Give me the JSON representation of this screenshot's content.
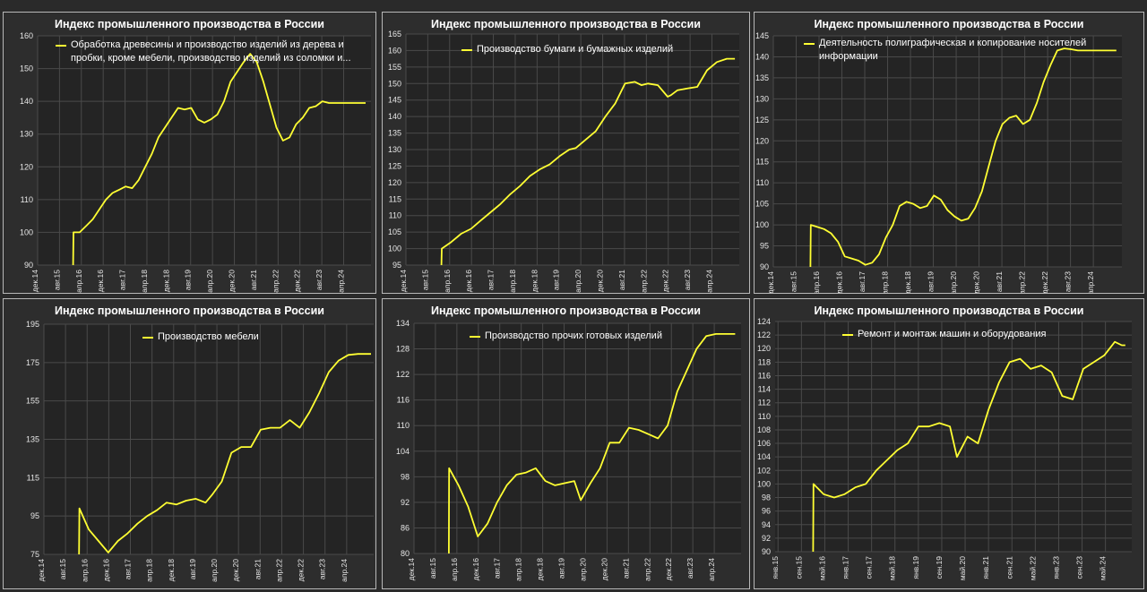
{
  "chart_data": [
    {
      "type": "line",
      "title": "Индекс промышленного производства в России",
      "legend": [
        "Обработка древесины и производство изделий из дерева и",
        "пробки, кроме мебели, производство изделий из соломки и..."
      ],
      "series_name": "Обработка древесины и производство изделий из дерева и пробки, кроме мебели, производство изделий из соломки и...",
      "color": "#ffff33",
      "ylim": [
        90,
        160
      ],
      "yticks": [
        90,
        100,
        110,
        120,
        130,
        140,
        150,
        160
      ],
      "xlim": [
        2014.917,
        2025.083
      ],
      "xticks": [
        {
          "label": "дек.14",
          "x": 2014.917
        },
        {
          "label": "авг.15",
          "x": 2015.583
        },
        {
          "label": "апр.16",
          "x": 2016.25
        },
        {
          "label": "дек.16",
          "x": 2016.917
        },
        {
          "label": "авг.17",
          "x": 2017.583
        },
        {
          "label": "апр.18",
          "x": 2018.25
        },
        {
          "label": "дек.18",
          "x": 2018.917
        },
        {
          "label": "авг.19",
          "x": 2019.583
        },
        {
          "label": "апр.20",
          "x": 2020.25
        },
        {
          "label": "дек.20",
          "x": 2020.917
        },
        {
          "label": "авг.21",
          "x": 2021.583
        },
        {
          "label": "апр.22",
          "x": 2022.25
        },
        {
          "label": "дек.22",
          "x": 2022.917
        },
        {
          "label": "авг.23",
          "x": 2023.583
        },
        {
          "label": "апр.24",
          "x": 2024.25
        }
      ],
      "x": [
        2016.0,
        2016.01,
        2016.2,
        2016.4,
        2016.6,
        2016.8,
        2017.0,
        2017.2,
        2017.4,
        2017.6,
        2017.8,
        2018.0,
        2018.2,
        2018.4,
        2018.6,
        2018.8,
        2019.0,
        2019.2,
        2019.4,
        2019.6,
        2019.8,
        2020.0,
        2020.2,
        2020.4,
        2020.6,
        2020.8,
        2021.0,
        2021.2,
        2021.4,
        2021.6,
        2021.8,
        2022.0,
        2022.2,
        2022.4,
        2022.6,
        2022.8,
        2023.0,
        2023.2,
        2023.4,
        2023.6,
        2023.8,
        2024.0,
        2024.2,
        2024.4,
        2024.6,
        2024.8,
        2024.92
      ],
      "values": [
        90,
        100,
        100,
        102,
        104,
        107,
        110,
        112,
        113,
        114,
        113.5,
        116,
        120,
        124,
        129,
        132,
        135,
        138,
        137.5,
        138,
        134.5,
        133.5,
        134.5,
        136,
        140,
        146,
        149,
        152,
        154.5,
        152,
        146,
        139,
        132,
        128,
        129,
        133,
        135,
        138,
        138.5,
        140,
        139.5,
        139.5,
        139.5,
        139.5,
        139.5,
        139.5,
        139.5
      ]
    },
    {
      "type": "line",
      "title": "Индекс промышленного производства в России",
      "legend": [
        "Производство бумаги и бумажных изделий"
      ],
      "series_name": "Производство бумаги и бумажных изделий",
      "color": "#ffff33",
      "ylim": [
        95,
        165
      ],
      "yticks": [
        95,
        100,
        105,
        110,
        115,
        120,
        125,
        130,
        135,
        140,
        145,
        150,
        155,
        160,
        165
      ],
      "xlim": [
        2014.917,
        2025.083
      ],
      "xticks": [
        {
          "label": "дек.14",
          "x": 2014.917
        },
        {
          "label": "авг.15",
          "x": 2015.583
        },
        {
          "label": "апр.16",
          "x": 2016.25
        },
        {
          "label": "дек.16",
          "x": 2016.917
        },
        {
          "label": "авг.17",
          "x": 2017.583
        },
        {
          "label": "апр.18",
          "x": 2018.25
        },
        {
          "label": "дек.18",
          "x": 2018.917
        },
        {
          "label": "авг.19",
          "x": 2019.583
        },
        {
          "label": "апр.20",
          "x": 2020.25
        },
        {
          "label": "дек.20",
          "x": 2020.917
        },
        {
          "label": "авг.21",
          "x": 2021.583
        },
        {
          "label": "апр.22",
          "x": 2022.25
        },
        {
          "label": "дек.22",
          "x": 2022.917
        },
        {
          "label": "авг.23",
          "x": 2023.583
        },
        {
          "label": "апр.24",
          "x": 2024.25
        }
      ],
      "x": [
        2016.0,
        2016.01,
        2016.3,
        2016.6,
        2016.9,
        2017.2,
        2017.5,
        2017.8,
        2018.1,
        2018.4,
        2018.7,
        2019.0,
        2019.3,
        2019.6,
        2019.9,
        2020.1,
        2020.4,
        2020.7,
        2021.0,
        2021.3,
        2021.6,
        2021.9,
        2022.1,
        2022.3,
        2022.6,
        2022.9,
        2023.0,
        2023.2,
        2023.5,
        2023.8,
        2024.1,
        2024.4,
        2024.7,
        2024.95
      ],
      "values": [
        95,
        100,
        102,
        104.5,
        106,
        108.5,
        111,
        113.5,
        116.5,
        119,
        122,
        124,
        125.5,
        128,
        130,
        130.5,
        133,
        135.5,
        140,
        144,
        150,
        150.5,
        149.5,
        150,
        149.5,
        146,
        146.5,
        148,
        148.5,
        149,
        154,
        156.5,
        157.5,
        157.5
      ]
    },
    {
      "type": "line",
      "title": "Индекс промышленного производства в России",
      "legend": [
        "Деятельность полиграфическая и копирование носителей",
        "информации"
      ],
      "series_name": "Деятельность полиграфическая и копирование носителей информации",
      "color": "#ffff33",
      "ylim": [
        90,
        145
      ],
      "yticks": [
        90,
        95,
        100,
        105,
        110,
        115,
        120,
        125,
        130,
        135,
        140,
        145
      ],
      "xlim": [
        2014.917,
        2025.083
      ],
      "xticks": [
        {
          "label": "дек.14",
          "x": 2014.917
        },
        {
          "label": "авг.15",
          "x": 2015.583
        },
        {
          "label": "апр.16",
          "x": 2016.25
        },
        {
          "label": "дек.16",
          "x": 2016.917
        },
        {
          "label": "авг.17",
          "x": 2017.583
        },
        {
          "label": "апр.18",
          "x": 2018.25
        },
        {
          "label": "дек.18",
          "x": 2018.917
        },
        {
          "label": "авг.19",
          "x": 2019.583
        },
        {
          "label": "апр.20",
          "x": 2020.25
        },
        {
          "label": "дек.20",
          "x": 2020.917
        },
        {
          "label": "авг.21",
          "x": 2021.583
        },
        {
          "label": "апр.22",
          "x": 2022.25
        },
        {
          "label": "дек.22",
          "x": 2022.917
        },
        {
          "label": "авг.23",
          "x": 2023.583
        },
        {
          "label": "апр.24",
          "x": 2024.25
        }
      ],
      "x": [
        2016.0,
        2016.01,
        2016.2,
        2016.4,
        2016.6,
        2016.8,
        2017.0,
        2017.2,
        2017.4,
        2017.6,
        2017.8,
        2018.0,
        2018.2,
        2018.4,
        2018.6,
        2018.8,
        2019.0,
        2019.2,
        2019.4,
        2019.6,
        2019.8,
        2020.0,
        2020.2,
        2020.4,
        2020.6,
        2020.8,
        2021.0,
        2021.2,
        2021.4,
        2021.6,
        2021.8,
        2022.0,
        2022.2,
        2022.4,
        2022.6,
        2022.8,
        2023.0,
        2023.2,
        2023.4,
        2023.6,
        2023.8,
        2024.0,
        2024.2,
        2024.4,
        2024.6,
        2024.8,
        2024.92
      ],
      "values": [
        90,
        100,
        99.5,
        99,
        98,
        96,
        92.5,
        92,
        91.5,
        90.5,
        91,
        93,
        97,
        100,
        104.5,
        105.5,
        105,
        104,
        104.5,
        107,
        106,
        103.5,
        102,
        101,
        101.5,
        104,
        108,
        114,
        120,
        124,
        125.5,
        126,
        124,
        125,
        129,
        134,
        138,
        141.5,
        142,
        141.8,
        141.5,
        141.5,
        141.5,
        141.5,
        141.5,
        141.5,
        141.5
      ]
    },
    {
      "type": "line",
      "title": "Индекс промышленного производства в России",
      "legend": [
        "Производство мебели"
      ],
      "series_name": "Производство мебели",
      "color": "#ffff33",
      "ylim": [
        75,
        195
      ],
      "yticks": [
        75,
        95,
        115,
        135,
        155,
        175,
        195
      ],
      "xlim": [
        2014.917,
        2025.083
      ],
      "xticks": [
        {
          "label": "дек.14",
          "x": 2014.917
        },
        {
          "label": "авг.15",
          "x": 2015.583
        },
        {
          "label": "апр.16",
          "x": 2016.25
        },
        {
          "label": "дек.16",
          "x": 2016.917
        },
        {
          "label": "авг.17",
          "x": 2017.583
        },
        {
          "label": "апр.18",
          "x": 2018.25
        },
        {
          "label": "дек.18",
          "x": 2018.917
        },
        {
          "label": "авг.19",
          "x": 2019.583
        },
        {
          "label": "апр.20",
          "x": 2020.25
        },
        {
          "label": "дек.20",
          "x": 2020.917
        },
        {
          "label": "авг.21",
          "x": 2021.583
        },
        {
          "label": "апр.22",
          "x": 2022.25
        },
        {
          "label": "дек.22",
          "x": 2022.917
        },
        {
          "label": "авг.23",
          "x": 2023.583
        },
        {
          "label": "апр.24",
          "x": 2024.25
        }
      ],
      "x": [
        2016.0,
        2016.01,
        2016.3,
        2016.6,
        2016.9,
        2017.2,
        2017.5,
        2017.8,
        2018.1,
        2018.4,
        2018.7,
        2019.0,
        2019.3,
        2019.6,
        2019.9,
        2020.1,
        2020.4,
        2020.7,
        2021.0,
        2021.3,
        2021.6,
        2021.9,
        2022.2,
        2022.5,
        2022.8,
        2023.1,
        2023.4,
        2023.7,
        2024.0,
        2024.3,
        2024.6,
        2024.9,
        2025.0
      ],
      "values": [
        75,
        99,
        88,
        82,
        76,
        82,
        86,
        91,
        95,
        98,
        102,
        101,
        103,
        104,
        102,
        106,
        113,
        128,
        131,
        131,
        140,
        141,
        141,
        145,
        141,
        149,
        159,
        170,
        176,
        179,
        179.5,
        179.5,
        179.5
      ]
    },
    {
      "type": "line",
      "title": "Индекс промышленного производства в России",
      "legend": [
        "Производство прочих готовых изделий"
      ],
      "series_name": "Производство прочих готовых изделий",
      "color": "#ffff33",
      "ylim": [
        80,
        134
      ],
      "yticks": [
        80,
        86,
        92,
        98,
        104,
        110,
        116,
        122,
        128,
        134
      ],
      "xlim": [
        2014.917,
        2025.083
      ],
      "xticks": [
        {
          "label": "дек.14",
          "x": 2014.917
        },
        {
          "label": "авг.15",
          "x": 2015.583
        },
        {
          "label": "апр.16",
          "x": 2016.25
        },
        {
          "label": "дек.16",
          "x": 2016.917
        },
        {
          "label": "авг.17",
          "x": 2017.583
        },
        {
          "label": "апр.18",
          "x": 2018.25
        },
        {
          "label": "дек.18",
          "x": 2018.917
        },
        {
          "label": "авг.19",
          "x": 2019.583
        },
        {
          "label": "апр.20",
          "x": 2020.25
        },
        {
          "label": "дек.20",
          "x": 2020.917
        },
        {
          "label": "авг.21",
          "x": 2021.583
        },
        {
          "label": "апр.22",
          "x": 2022.25
        },
        {
          "label": "дек.22",
          "x": 2022.917
        },
        {
          "label": "авг.23",
          "x": 2023.583
        },
        {
          "label": "апр.24",
          "x": 2024.25
        }
      ],
      "x": [
        2016.0,
        2016.01,
        2016.3,
        2016.6,
        2016.9,
        2017.2,
        2017.5,
        2017.8,
        2018.1,
        2018.4,
        2018.7,
        2019.0,
        2019.3,
        2019.6,
        2019.9,
        2020.1,
        2020.4,
        2020.7,
        2021.0,
        2021.3,
        2021.6,
        2021.9,
        2022.2,
        2022.5,
        2022.8,
        2023.1,
        2023.4,
        2023.7,
        2024.0,
        2024.3,
        2024.6,
        2024.9
      ],
      "values": [
        80,
        100,
        96,
        91,
        84,
        87,
        92,
        96,
        98.5,
        99,
        100,
        97,
        96,
        96.5,
        97,
        92.5,
        96.5,
        100,
        106,
        106,
        109.5,
        109,
        108,
        107,
        110,
        118,
        123,
        128,
        131,
        131.5,
        131.5,
        131.5
      ]
    },
    {
      "type": "line",
      "title": "Индекс промышленного производства в России",
      "legend": [
        "Ремонт и монтаж машин и оборудования"
      ],
      "series_name": "Ремонт и монтаж машин и оборудования",
      "color": "#ffff33",
      "ylim": [
        90,
        124
      ],
      "yticks": [
        90,
        92,
        94,
        96,
        98,
        100,
        102,
        104,
        106,
        108,
        110,
        112,
        114,
        116,
        118,
        120,
        122,
        124
      ],
      "xlim": [
        2014.917,
        2025.083
      ],
      "xticks": [
        {
          "label": "янв.15",
          "x": 2015.0
        },
        {
          "label": "сен.15",
          "x": 2015.667
        },
        {
          "label": "май.16",
          "x": 2016.333
        },
        {
          "label": "янв.17",
          "x": 2017.0
        },
        {
          "label": "сен.17",
          "x": 2017.667
        },
        {
          "label": "май.18",
          "x": 2018.333
        },
        {
          "label": "янв.19",
          "x": 2019.0
        },
        {
          "label": "сен.19",
          "x": 2019.667
        },
        {
          "label": "май.20",
          "x": 2020.333
        },
        {
          "label": "янв.21",
          "x": 2021.0
        },
        {
          "label": "сен.21",
          "x": 2021.667
        },
        {
          "label": "май.22",
          "x": 2022.333
        },
        {
          "label": "янв.23",
          "x": 2023.0
        },
        {
          "label": "сен.23",
          "x": 2023.667
        },
        {
          "label": "май.24",
          "x": 2024.333
        }
      ],
      "x": [
        2016.0,
        2016.01,
        2016.3,
        2016.6,
        2016.9,
        2017.2,
        2017.5,
        2017.8,
        2018.1,
        2018.4,
        2018.7,
        2019.0,
        2019.3,
        2019.6,
        2019.9,
        2020.1,
        2020.4,
        2020.7,
        2021.0,
        2021.3,
        2021.6,
        2021.9,
        2022.2,
        2022.5,
        2022.8,
        2023.1,
        2023.4,
        2023.7,
        2024.0,
        2024.3,
        2024.6,
        2024.8,
        2024.9
      ],
      "values": [
        90,
        100,
        98.5,
        98,
        98.5,
        99.5,
        100,
        102,
        103.5,
        105,
        106,
        108.5,
        108.5,
        109,
        108.5,
        104,
        107,
        106,
        111,
        115,
        118,
        118.5,
        117,
        117.5,
        116.5,
        113,
        112.5,
        117,
        118,
        119,
        121,
        120.5,
        120.5
      ]
    }
  ]
}
